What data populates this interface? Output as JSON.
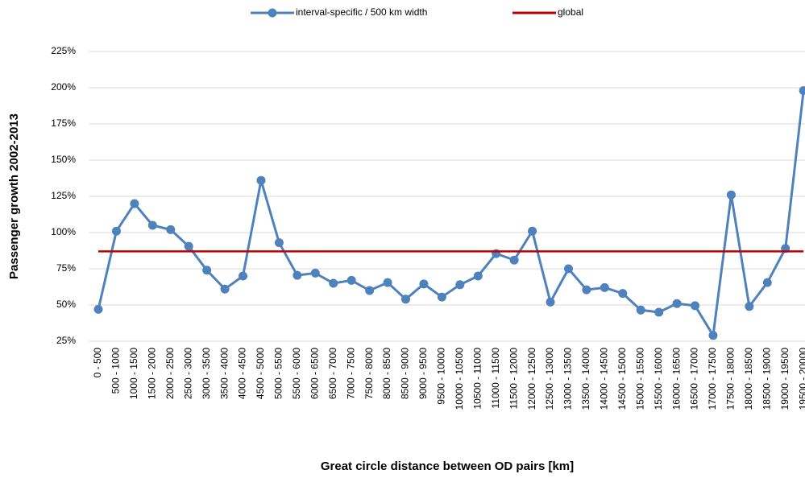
{
  "chart_data": {
    "type": "line",
    "x_label": "Great circle distance between OD pairs [km]",
    "y_label": "Passenger growth 2002-2013",
    "categories": [
      "0 - 500",
      "500 - 1000",
      "1000 - 1500",
      "1500 - 2000",
      "2000 - 2500",
      "2500 - 3000",
      "3000 - 3500",
      "3500 - 4000",
      "4000 - 4500",
      "4500 - 5000",
      "5000 - 5500",
      "5500 - 6000",
      "6000 - 6500",
      "6500 - 7000",
      "7000 - 7500",
      "7500 - 8000",
      "8000 - 8500",
      "8500 - 9000",
      "9000 - 9500",
      "9500 - 10000",
      "10000 - 10500",
      "10500 - 11000",
      "11000 - 11500",
      "11500 - 12000",
      "12000 - 12500",
      "12500 - 13000",
      "13000 - 13500",
      "13500 - 14000",
      "14000 - 14500",
      "14500 - 15000",
      "15000 - 15500",
      "15500 - 16000",
      "16000 - 16500",
      "16500 - 17000",
      "17000 - 17500",
      "17500 - 18000",
      "18000 - 18500",
      "18500 - 19000",
      "19000 - 19500",
      "19500 - 20000"
    ],
    "series": [
      {
        "name": "interval-specific / 500 km width",
        "color": "#4f81bd",
        "markers": true,
        "values": [
          47,
          101,
          120,
          105,
          102,
          90.5,
          74,
          61,
          70,
          136,
          93,
          70.5,
          72,
          65,
          67,
          60,
          65.5,
          54,
          64.5,
          55.5,
          64,
          70,
          85.5,
          81,
          101,
          52,
          75,
          60.5,
          62,
          58,
          46.5,
          45,
          51,
          49.5,
          29,
          126,
          49,
          65.5,
          89,
          198
        ]
      },
      {
        "name": "global",
        "color": "#c00000",
        "markers": false,
        "values": [
          87,
          87,
          87,
          87,
          87,
          87,
          87,
          87,
          87,
          87,
          87,
          87,
          87,
          87,
          87,
          87,
          87,
          87,
          87,
          87,
          87,
          87,
          87,
          87,
          87,
          87,
          87,
          87,
          87,
          87,
          87,
          87,
          87,
          87,
          87,
          87,
          87,
          87,
          87,
          87
        ]
      }
    ],
    "ylim": [
      25,
      225
    ],
    "yticks": [
      {
        "value": 25,
        "label": "25%"
      },
      {
        "value": 50,
        "label": "50%"
      },
      {
        "value": 75,
        "label": "75%"
      },
      {
        "value": 100,
        "label": "100%"
      },
      {
        "value": 125,
        "label": "125%"
      },
      {
        "value": 150,
        "label": "150%"
      },
      {
        "value": 175,
        "label": "175%"
      },
      {
        "value": 200,
        "label": "200%"
      },
      {
        "value": 225,
        "label": "225%"
      }
    ],
    "grid": true,
    "legend": "top"
  }
}
